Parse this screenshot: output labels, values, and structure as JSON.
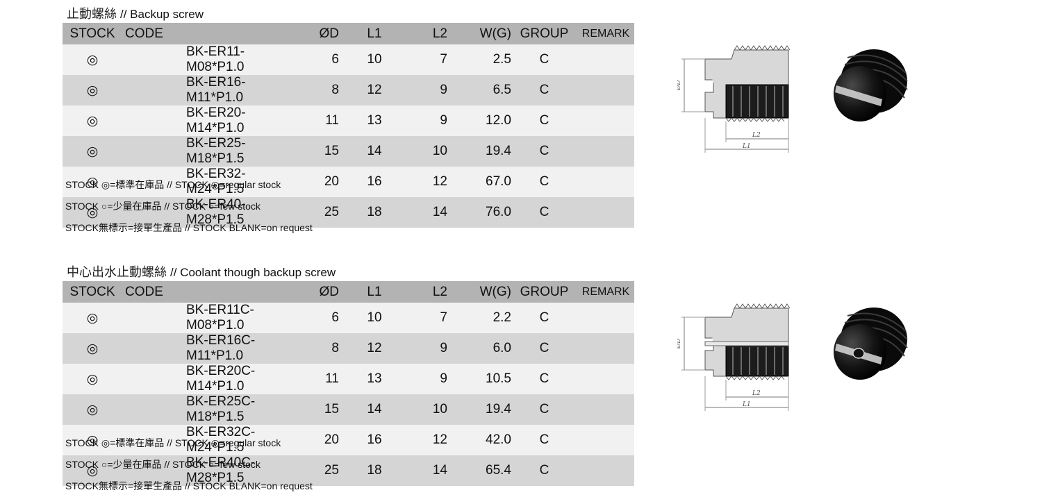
{
  "columns": [
    "STOCK",
    "CODE",
    "ØD",
    "L1",
    "L2",
    "W(G)",
    "GROUP",
    "REMARK"
  ],
  "sections": [
    {
      "title_cn": "止動螺絲",
      "title_en": "// Backup screw",
      "rows": [
        {
          "stock": "◎",
          "code": "BK-ER11-M08*P1.0",
          "d": "6",
          "l1": "10",
          "l2": "7",
          "w": "2.5",
          "group": "C",
          "remark": ""
        },
        {
          "stock": "◎",
          "code": "BK-ER16-M11*P1.0",
          "d": "8",
          "l1": "12",
          "l2": "9",
          "w": "6.5",
          "group": "C",
          "remark": ""
        },
        {
          "stock": "◎",
          "code": "BK-ER20-M14*P1.0",
          "d": "11",
          "l1": "13",
          "l2": "9",
          "w": "12.0",
          "group": "C",
          "remark": ""
        },
        {
          "stock": "◎",
          "code": "BK-ER25-M18*P1.5",
          "d": "15",
          "l1": "14",
          "l2": "10",
          "w": "19.4",
          "group": "C",
          "remark": ""
        },
        {
          "stock": "◎",
          "code": "BK-ER32-M24*P1.5",
          "d": "20",
          "l1": "16",
          "l2": "12",
          "w": "67.0",
          "group": "C",
          "remark": ""
        },
        {
          "stock": "◎",
          "code": "BK-ER40-M28*P1.5",
          "d": "25",
          "l1": "18",
          "l2": "14",
          "w": "76.0",
          "group": "C",
          "remark": ""
        }
      ],
      "notes": [
        "STOCK ◎=標準在庫品 // STOCK ◎=regular stock",
        "STOCK ○=少量在庫品 // STOCK ○=few stock",
        "STOCK無標示=接單生產品 // STOCK BLANK=on request"
      ],
      "drawing_labels": {
        "d": "ØD",
        "l1": "L1",
        "l2": "L2"
      }
    },
    {
      "title_cn": "中心出水止動螺絲",
      "title_en": "// Coolant though backup screw",
      "rows": [
        {
          "stock": "◎",
          "code": "BK-ER11C-M08*P1.0",
          "d": "6",
          "l1": "10",
          "l2": "7",
          "w": "2.2",
          "group": "C",
          "remark": ""
        },
        {
          "stock": "◎",
          "code": "BK-ER16C-M11*P1.0",
          "d": "8",
          "l1": "12",
          "l2": "9",
          "w": "6.0",
          "group": "C",
          "remark": ""
        },
        {
          "stock": "◎",
          "code": "BK-ER20C-M14*P1.0",
          "d": "11",
          "l1": "13",
          "l2": "9",
          "w": "10.5",
          "group": "C",
          "remark": ""
        },
        {
          "stock": "◎",
          "code": "BK-ER25C-M18*P1.5",
          "d": "15",
          "l1": "14",
          "l2": "10",
          "w": "19.4",
          "group": "C",
          "remark": ""
        },
        {
          "stock": "◎",
          "code": "BK-ER32C-M24*P1.5",
          "d": "20",
          "l1": "16",
          "l2": "12",
          "w": "42.0",
          "group": "C",
          "remark": ""
        },
        {
          "stock": "◎",
          "code": "BK-ER40C-M28*P1.5",
          "d": "25",
          "l1": "18",
          "l2": "14",
          "w": "65.4",
          "group": "C",
          "remark": ""
        }
      ],
      "notes": [
        "STOCK ◎=標準在庫品 // STOCK ◎=regular stock",
        "STOCK ○=少量在庫品 // STOCK ○=few stock",
        "STOCK無標示=接單生產品 // STOCK BLANK=on request"
      ],
      "drawing_labels": {
        "d": "ØD",
        "l1": "L1",
        "l2": "L2"
      }
    }
  ]
}
